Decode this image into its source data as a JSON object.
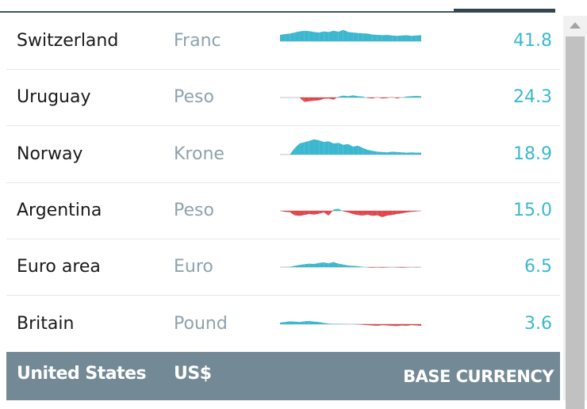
{
  "colors": {
    "positive": "#3bb8cf",
    "negative": "#e0474c",
    "footer": "#738a96"
  },
  "rows": [
    {
      "country": "Switzerland",
      "currency": "Franc",
      "value": "41.8",
      "spark": [
        40,
        45,
        48,
        55,
        62,
        66,
        64,
        58,
        55,
        62,
        58,
        66,
        60,
        72,
        58,
        55,
        52,
        50,
        48,
        42,
        40,
        38,
        40,
        36,
        34,
        36,
        38,
        34,
        36,
        38
      ]
    },
    {
      "country": "Uruguay",
      "currency": "Peso",
      "value": "24.3",
      "spark": [
        0,
        0,
        0,
        0,
        0,
        -28,
        -24,
        -20,
        -18,
        -8,
        -6,
        -14,
        5,
        12,
        8,
        14,
        8,
        6,
        -4,
        -6,
        2,
        -6,
        -4,
        3,
        -6,
        0,
        6,
        8,
        10,
        8
      ]
    },
    {
      "country": "Norway",
      "currency": "Krone",
      "value": "18.9",
      "spark": [
        0,
        0,
        0,
        40,
        70,
        78,
        86,
        96,
        90,
        80,
        84,
        70,
        74,
        62,
        66,
        50,
        56,
        42,
        30,
        24,
        18,
        16,
        14,
        18,
        16,
        14,
        12,
        14,
        12,
        12
      ]
    },
    {
      "country": "Argentina",
      "currency": "Peso",
      "value": "15.0",
      "spark": [
        0,
        -6,
        -8,
        -28,
        -32,
        -26,
        -20,
        -24,
        -18,
        -10,
        -30,
        8,
        14,
        -4,
        -10,
        -20,
        -26,
        -30,
        -24,
        -32,
        -28,
        -40,
        -30,
        -26,
        -20,
        -16,
        -10,
        -6,
        -4,
        0
      ]
    },
    {
      "country": "Euro area",
      "currency": "Euro",
      "value": "6.5",
      "spark": [
        0,
        0,
        2,
        8,
        14,
        18,
        22,
        20,
        26,
        30,
        24,
        32,
        22,
        16,
        10,
        8,
        6,
        2,
        -2,
        -4,
        -2,
        -4,
        -2,
        0,
        -2,
        -4,
        -2,
        0,
        -2,
        0
      ]
    },
    {
      "country": "Britain",
      "currency": "Pound",
      "value": "3.6",
      "spark": [
        10,
        14,
        18,
        16,
        14,
        18,
        20,
        16,
        14,
        8,
        4,
        2,
        2,
        1,
        0,
        0,
        -2,
        -4,
        -6,
        -8,
        -10,
        -6,
        -8,
        -10,
        -12,
        -8,
        -10,
        -6,
        -8,
        -10
      ]
    }
  ],
  "footer": {
    "country": "United States",
    "currency": "US$",
    "label": "BASE CURRENCY"
  }
}
